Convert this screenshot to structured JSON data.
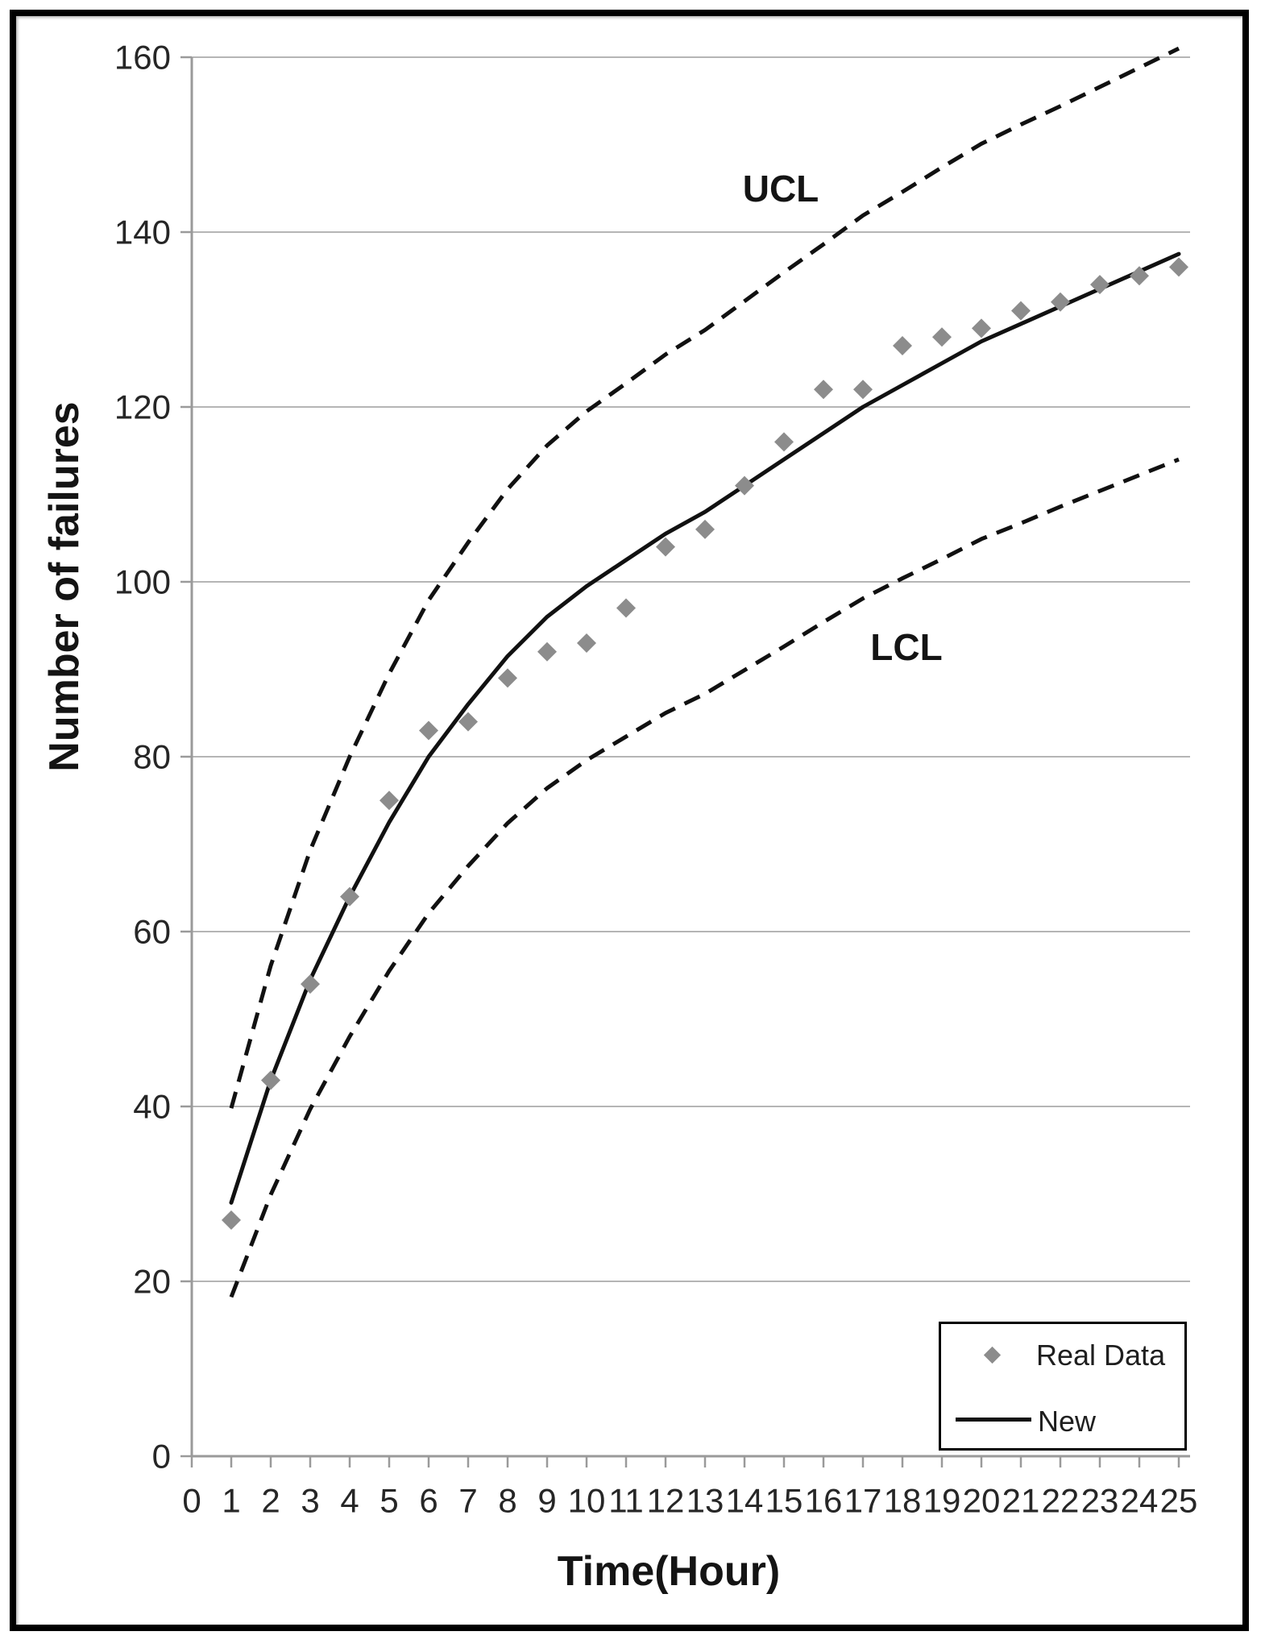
{
  "figure": {
    "y_axis_title": "Number of failures",
    "x_axis_title": "Time(Hour)",
    "ucl_label": "UCL",
    "lcl_label": "LCL"
  },
  "legend": {
    "items": [
      {
        "label": "Real Data",
        "marker": "diamond-icon",
        "color": "#8c8c8c"
      },
      {
        "label": "New",
        "marker": "line-sample",
        "color": "#111111"
      }
    ]
  },
  "colors": {
    "marker_gray": "#8c8c8c",
    "line_black": "#111111",
    "gridline_gray": "#b5b5b5",
    "axis_gray": "#9a9a9a",
    "text_dark": "#262626",
    "frame_black": "#000000",
    "background": "#ffffff"
  },
  "chart_data": {
    "type": "line",
    "title": "",
    "xlabel": "Time(Hour)",
    "ylabel": "Number of failures",
    "xlim": [
      0,
      25
    ],
    "ylim": [
      0,
      160
    ],
    "grid": "horizontal",
    "legend_position": "bottom-right",
    "x_ticks": [
      0,
      1,
      2,
      3,
      4,
      5,
      6,
      7,
      8,
      9,
      10,
      11,
      12,
      13,
      14,
      15,
      16,
      17,
      18,
      19,
      20,
      21,
      22,
      23,
      24,
      25
    ],
    "y_ticks": [
      0,
      20,
      40,
      60,
      80,
      100,
      120,
      140,
      160
    ],
    "x": [
      1,
      2,
      3,
      4,
      5,
      6,
      7,
      8,
      9,
      10,
      11,
      12,
      13,
      14,
      15,
      16,
      17,
      18,
      19,
      20,
      21,
      22,
      23,
      24,
      25
    ],
    "series": [
      {
        "name": "Real Data",
        "style": "scatter-diamond",
        "color": "#8c8c8c",
        "values": [
          27,
          43,
          54,
          64,
          75,
          83,
          84,
          89,
          92,
          93,
          97,
          104,
          106,
          111,
          116,
          122,
          122,
          127,
          128,
          129,
          131,
          132,
          134,
          135,
          136
        ]
      },
      {
        "name": "New",
        "style": "solid-line",
        "color": "#111111",
        "values": [
          29,
          43,
          54.5,
          64,
          72.5,
          80,
          86,
          91.5,
          96,
          99.5,
          102.5,
          105.5,
          108,
          111,
          114,
          117,
          120,
          122.5,
          125,
          127.5,
          129.5,
          131.5,
          133.5,
          135.5,
          137.5
        ]
      },
      {
        "name": "UCL",
        "style": "dashed-line",
        "color": "#111111",
        "values": [
          39.8,
          56.1,
          69.3,
          80,
          89.5,
          97.9,
          104.5,
          110.6,
          115.6,
          119.5,
          122.7,
          126,
          128.8,
          132.1,
          135.4,
          138.6,
          141.9,
          144.6,
          147.4,
          150.1,
          152.3,
          154.4,
          156.6,
          158.8,
          161
        ]
      },
      {
        "name": "LCL",
        "style": "dashed-line",
        "color": "#111111",
        "values": [
          18.2,
          29.9,
          39.7,
          48,
          55.5,
          62.1,
          67.5,
          72.4,
          76.4,
          79.6,
          82.3,
          85,
          87.2,
          89.9,
          92.6,
          95.4,
          98.1,
          100.4,
          102.6,
          104.9,
          106.7,
          108.6,
          110.4,
          112.2,
          114
        ]
      }
    ],
    "annotations": [
      {
        "text": "UCL",
        "attached_to": "UCL"
      },
      {
        "text": "LCL",
        "attached_to": "LCL"
      }
    ]
  }
}
